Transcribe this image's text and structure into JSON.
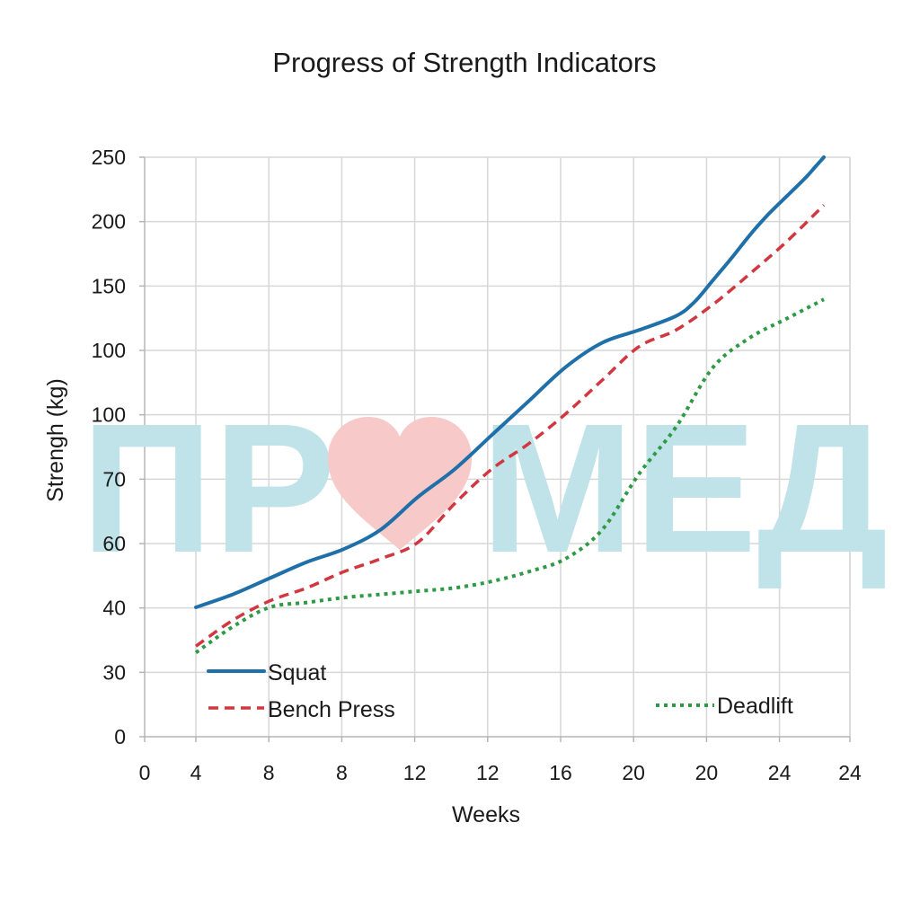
{
  "colors": {
    "squat": "#1f6fa8",
    "bench_press": "#d0373f",
    "deadlift": "#2e9a44",
    "watermark_text": "#bfe3e8",
    "watermark_heart": "#f7c9c9"
  },
  "watermark": {
    "left_text": "ПР",
    "right_text": "МЕД",
    "icon": "heart-icon"
  },
  "chart_data": {
    "type": "line",
    "title": "Progress of Strength Indicators",
    "xlabel": "Weeks",
    "ylabel": "Strengh (kg)",
    "x_tick_labels": [
      "0",
      "4",
      "8",
      "8",
      "12",
      "12",
      "16",
      "20",
      "20",
      "24",
      "24"
    ],
    "y_tick_labels": [
      "0",
      "30",
      "40",
      "60",
      "70",
      "100",
      "100",
      "150",
      "200",
      "250"
    ],
    "grid": true,
    "legend": [
      {
        "label": "Squat",
        "position": "bottom-left"
      },
      {
        "label": "Bench Press",
        "position": "bottom-left"
      },
      {
        "label": "Deadlift",
        "position": "bottom-right"
      }
    ],
    "series": [
      {
        "name": "Squat",
        "style": "solid",
        "points": [
          [
            4,
            40
          ],
          [
            6,
            44
          ],
          [
            8,
            49
          ],
          [
            10,
            54
          ],
          [
            12,
            58
          ],
          [
            14,
            62
          ],
          [
            16,
            67
          ],
          [
            18,
            72
          ],
          [
            20,
            80
          ],
          [
            22,
            88
          ],
          [
            24,
            96
          ],
          [
            26,
            106
          ],
          [
            28,
            116
          ],
          [
            30,
            127
          ],
          [
            31,
            138
          ],
          [
            32,
            155
          ],
          [
            33,
            172
          ],
          [
            34,
            190
          ],
          [
            35,
            206
          ],
          [
            36,
            220
          ],
          [
            37,
            234
          ],
          [
            37.5,
            242
          ],
          [
            38,
            250
          ]
        ]
      },
      {
        "name": "Bench Press",
        "style": "dashed",
        "points": [
          [
            4,
            34
          ],
          [
            6,
            38
          ],
          [
            8,
            42
          ],
          [
            10,
            46
          ],
          [
            12,
            51
          ],
          [
            14,
            55
          ],
          [
            16,
            60
          ],
          [
            18,
            66
          ],
          [
            20,
            72
          ],
          [
            22,
            78
          ],
          [
            24,
            85
          ],
          [
            26,
            93
          ],
          [
            28,
            103
          ],
          [
            30,
            116
          ],
          [
            32,
            136
          ],
          [
            34,
            160
          ],
          [
            36,
            185
          ],
          [
            38,
            213
          ]
        ]
      },
      {
        "name": "Deadlift",
        "style": "dotted",
        "points": [
          [
            4,
            33
          ],
          [
            6,
            37
          ],
          [
            8,
            40
          ],
          [
            10,
            41.5
          ],
          [
            12,
            43
          ],
          [
            14,
            44
          ],
          [
            16,
            45
          ],
          [
            18,
            46
          ],
          [
            20,
            48
          ],
          [
            22,
            51
          ],
          [
            24,
            55
          ],
          [
            26,
            62
          ],
          [
            28,
            71
          ],
          [
            30,
            82
          ],
          [
            32,
            96
          ],
          [
            34,
            110
          ],
          [
            36,
            125
          ],
          [
            38,
            140
          ]
        ]
      }
    ]
  }
}
